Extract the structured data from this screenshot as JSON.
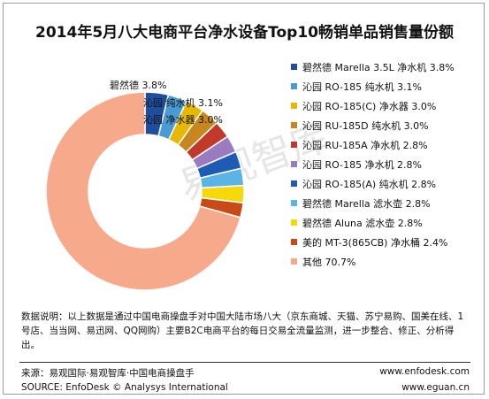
{
  "chart_data": {
    "type": "pie",
    "title": "2014年5月八大电商平台净水设备Top10畅销单品销售量份额",
    "series": [
      {
        "name": "碧然德 Marella 3.5L 净水机",
        "value": 3.8,
        "label": "碧然德 Marella 3.5L 净水机 3.8%",
        "color": "#1f4e9c"
      },
      {
        "name": "沁园 RO-185 纯水机",
        "value": 3.1,
        "label": "沁园 RO-185 纯水机 3.1%",
        "color": "#4a9bd4"
      },
      {
        "name": "沁园 RO-185(C) 净水器",
        "value": 3.0,
        "label": "沁园 RO-185(C) 净水器 3.0%",
        "color": "#e6b800"
      },
      {
        "name": "沁园 RU-185D 纯水机",
        "value": 3.0,
        "label": "沁园 RU-185D 纯水机 3.0%",
        "color": "#c8861e"
      },
      {
        "name": "沁园 RU-185A 净水机",
        "value": 2.8,
        "label": "沁园 RU-185A 净水机 2.8%",
        "color": "#c0392b"
      },
      {
        "name": "沁园 RO-185 净水机",
        "value": 2.8,
        "label": "沁园 RO-185 净水机 2.8%",
        "color": "#9b7bbf"
      },
      {
        "name": "沁园 RO-185(A) 纯水机",
        "value": 2.8,
        "label": "沁园 RO-185(A) 纯水机 2.8%",
        "color": "#1e5bb5"
      },
      {
        "name": "碧然德 Marella 滤水壶",
        "value": 2.8,
        "label": "碧然德 Marella 滤水壶 2.8%",
        "color": "#5ab4e6"
      },
      {
        "name": "碧然德 Aluna 滤水壶",
        "value": 2.8,
        "label": "碧然德 Aluna 滤水壶 2.8%",
        "color": "#f5d90a"
      },
      {
        "name": "美的 MT-3(865CB) 净水桶",
        "value": 2.4,
        "label": "美的 MT-3(865CB) 净水桶 2.4%",
        "color": "#c84a16"
      },
      {
        "name": "其他",
        "value": 70.7,
        "label": "其他 70.7%",
        "color": "#f7a98b"
      }
    ],
    "annotations": [
      "碧然德 3.8%",
      "沁园 纯水机 3.1%",
      "沁园 净水器 3.0%"
    ],
    "legend_position": "right"
  },
  "watermark": "易观智库",
  "note": "数据说明：以上数据是通过中国电商操盘手对中国大陆市场八大（京东商城、天猫、苏宁易购、国美在线、1号店、当当网、易迅网、QQ网购）主要B2C电商平台的每日交易全流量监测，进一步整合、修正、分析得出。",
  "footer": {
    "source_cn": "来源：易观国际·易观智库·中国电商操盘手",
    "source_en": "SOURCE: EnfoDesk © Analysys International",
    "url1": "www.enfodesk.com",
    "url2": "www.eguan.cn"
  }
}
